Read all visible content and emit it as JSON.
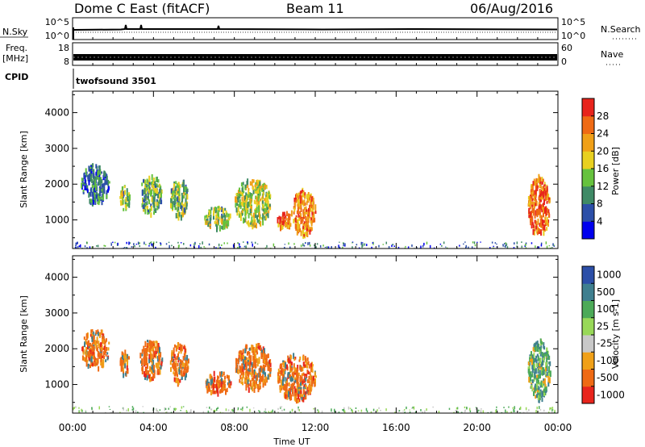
{
  "header": {
    "title": "Dome C East (fitACF)",
    "beam": "Beam 11",
    "date": "06/Aug/2016"
  },
  "strips": {
    "nsky_label": "N.Sky",
    "nsky_ticks": [
      "10^5",
      "10^0"
    ],
    "nsearch_label": "N.Search",
    "freq_label_1": "Freq.",
    "freq_label_2": "[MHz]",
    "freq_ticks": [
      "18",
      "8"
    ],
    "nave_label": "Nave",
    "nave_ticks": [
      "60",
      "0"
    ],
    "cpid_label": "CPID",
    "cpid_value": "twofsound 3501"
  },
  "colors": {
    "power": [
      "#0000ee",
      "#2c4fa8",
      "#3f8a66",
      "#66c23e",
      "#e8d020",
      "#f0a018",
      "#ef6a14",
      "#e8241c"
    ],
    "velocity": [
      "#e8241c",
      "#ef6a14",
      "#f0a018",
      "#c8c8c8",
      "#98d858",
      "#4caa58",
      "#3f7f8f",
      "#2c4fa8"
    ]
  },
  "chart_data": [
    {
      "type": "heatmap",
      "name": "power-panel",
      "ylabel": "Slant Range [km]",
      "xlabel": "",
      "xlim": [
        0,
        24
      ],
      "ylim": [
        200,
        4600
      ],
      "yticks": [
        "1000",
        "2000",
        "3000",
        "4000"
      ],
      "colorbar": {
        "label": "Power [dB]",
        "range": [
          0,
          32
        ],
        "ticks": [
          "4",
          "8",
          "12",
          "16",
          "20",
          "24",
          "28"
        ]
      },
      "echo_regions": [
        {
          "t0": 0.4,
          "t1": 1.8,
          "r0": 1500,
          "r1": 2600,
          "value": 8
        },
        {
          "t0": 2.3,
          "t1": 2.8,
          "r0": 1300,
          "r1": 2000,
          "value": 14
        },
        {
          "t0": 3.3,
          "t1": 4.4,
          "r0": 1200,
          "r1": 2300,
          "value": 12
        },
        {
          "t0": 4.8,
          "t1": 5.7,
          "r0": 1100,
          "r1": 2200,
          "value": 14
        },
        {
          "t0": 6.5,
          "t1": 7.8,
          "r0": 800,
          "r1": 1400,
          "value": 14
        },
        {
          "t0": 8.0,
          "t1": 9.8,
          "r0": 900,
          "r1": 2200,
          "value": 16
        },
        {
          "t0": 10.1,
          "t1": 10.8,
          "r0": 800,
          "r1": 1300,
          "value": 26
        },
        {
          "t0": 10.8,
          "t1": 12.0,
          "r0": 600,
          "r1": 1900,
          "value": 24
        },
        {
          "t0": 22.5,
          "t1": 23.6,
          "r0": 600,
          "r1": 2300,
          "value": 26
        }
      ],
      "noise_band_km": [
        200,
        400
      ]
    },
    {
      "type": "heatmap",
      "name": "velocity-panel",
      "ylabel": "Slant Range [km]",
      "xlabel": "Time UT",
      "xlim": [
        0,
        24
      ],
      "ylim": [
        200,
        4600
      ],
      "xticks": [
        "00:00",
        "04:00",
        "08:00",
        "12:00",
        "16:00",
        "20:00",
        "00:00"
      ],
      "yticks": [
        "1000",
        "2000",
        "3000",
        "4000"
      ],
      "colorbar": {
        "label": "Velocity [m s-1]",
        "ticks": [
          "1000",
          "500",
          "100",
          "25",
          "-25",
          "-100",
          "-500",
          "-1000"
        ]
      },
      "echo_regions": [
        {
          "t0": 0.4,
          "t1": 1.8,
          "r0": 1500,
          "r1": 2600,
          "value": -100
        },
        {
          "t0": 2.3,
          "t1": 2.8,
          "r0": 1300,
          "r1": 2000,
          "value": -300
        },
        {
          "t0": 3.3,
          "t1": 4.4,
          "r0": 1200,
          "r1": 2300,
          "value": -300
        },
        {
          "t0": 4.8,
          "t1": 5.7,
          "r0": 1100,
          "r1": 2200,
          "value": -300
        },
        {
          "t0": 6.5,
          "t1": 7.8,
          "r0": 800,
          "r1": 1400,
          "value": -300
        },
        {
          "t0": 8.0,
          "t1": 9.8,
          "r0": 900,
          "r1": 2200,
          "value": -300
        },
        {
          "t0": 10.1,
          "t1": 12.0,
          "r0": 600,
          "r1": 1900,
          "value": -300
        },
        {
          "t0": 22.5,
          "t1": 23.6,
          "r0": 600,
          "r1": 2300,
          "value": 200
        }
      ],
      "noise_band_km": [
        200,
        400
      ]
    }
  ]
}
